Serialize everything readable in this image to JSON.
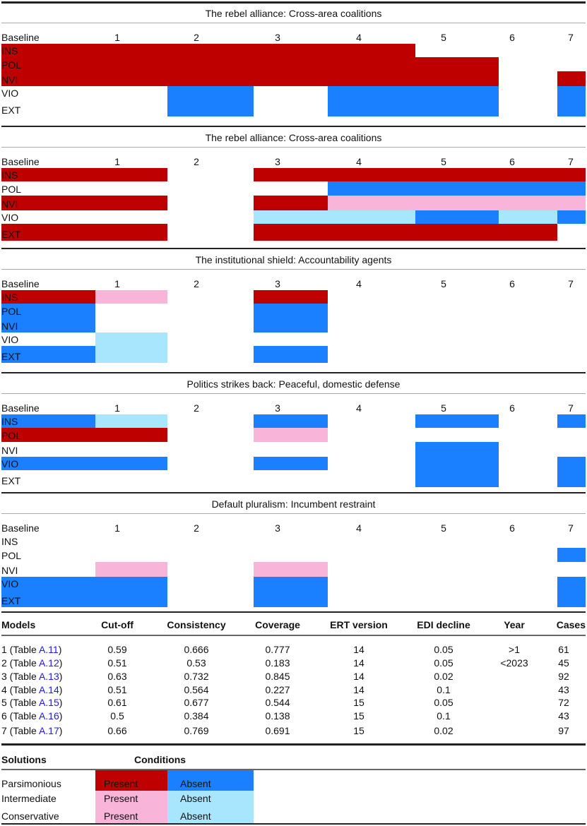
{
  "colors": {
    "present_parsimonious": "#bf0000",
    "absent_parsimonious": "#1a80ff",
    "present_other": "#f9b4d9",
    "absent_other": "#a8e6fe"
  },
  "legend_codes": {
    "P": "present parsimonious",
    "A": "absent parsimonious",
    "p": "present intermediate/conservative",
    "a": "absent intermediate/conservative"
  },
  "column_headers": [
    "Baseline",
    "1",
    "2",
    "3",
    "4",
    "5",
    "6",
    "7"
  ],
  "row_labels": [
    "INS",
    "POL",
    "NVI",
    "VIO",
    "EXT"
  ],
  "panels": [
    {
      "title": "The rebel alliance: Cross-area coalitions",
      "rows": [
        [
          "P",
          "P",
          "P",
          "P",
          "P",
          "",
          "",
          ""
        ],
        [
          "P",
          "P",
          "P",
          "P",
          "P",
          "P",
          "",
          ""
        ],
        [
          "P",
          "P",
          "P",
          "P",
          "P",
          "P",
          "",
          "P"
        ],
        [
          "",
          "",
          "A",
          "",
          "A",
          "A",
          "",
          "A"
        ],
        [
          "",
          "",
          "A",
          "",
          "A",
          "A",
          "",
          "A"
        ]
      ]
    },
    {
      "title": "The rebel alliance: Cross-area coalitions",
      "rows": [
        [
          "P",
          "P",
          "",
          "P",
          "P",
          "P",
          "P",
          "P"
        ],
        [
          "",
          "",
          "",
          "",
          "A",
          "A",
          "A",
          "A"
        ],
        [
          "P",
          "P",
          "",
          "P",
          "p",
          "p",
          "p",
          "p"
        ],
        [
          "",
          "",
          "",
          "a",
          "a",
          "A",
          "a",
          "A"
        ],
        [
          "P",
          "P",
          "",
          "P",
          "P",
          "P",
          "P",
          ""
        ]
      ]
    },
    {
      "title": "The institutional shield: Accountability agents",
      "rows": [
        [
          "P",
          "p",
          "",
          "P",
          "",
          "",
          "",
          ""
        ],
        [
          "A",
          "",
          "",
          "A",
          "",
          "",
          "",
          ""
        ],
        [
          "A",
          "",
          "",
          "A",
          "",
          "",
          "",
          ""
        ],
        [
          "",
          "a",
          "",
          "",
          "",
          "",
          "",
          ""
        ],
        [
          "A",
          "a",
          "",
          "A",
          "",
          "",
          "",
          ""
        ]
      ]
    },
    {
      "title": "Politics strikes back: Peaceful, domestic defense",
      "rows": [
        [
          "A",
          "a",
          "",
          "A",
          "",
          "A",
          "",
          "A"
        ],
        [
          "P",
          "P",
          "",
          "p",
          "",
          "",
          "",
          ""
        ],
        [
          "",
          "",
          "",
          "",
          "",
          "A",
          "",
          ""
        ],
        [
          "A",
          "A",
          "",
          "A",
          "",
          "A",
          "",
          "A"
        ],
        [
          "",
          "",
          "",
          "",
          "",
          "A",
          "",
          "A"
        ]
      ]
    },
    {
      "title": "Default pluralism: Incumbent restraint",
      "rows": [
        [
          "",
          "",
          "",
          "",
          "",
          "",
          "",
          ""
        ],
        [
          "",
          "",
          "",
          "",
          "",
          "",
          "",
          "A"
        ],
        [
          "",
          "p",
          "",
          "p",
          "",
          "",
          "",
          ""
        ],
        [
          "A",
          "A",
          "",
          "A",
          "",
          "",
          "",
          "A"
        ],
        [
          "A",
          "A",
          "",
          "A",
          "",
          "",
          "",
          "A"
        ]
      ]
    }
  ],
  "models": {
    "headers": [
      "Models",
      "Cut-off",
      "Consistency",
      "Coverage",
      "ERT version",
      "EDI decline",
      "Year",
      "Cases"
    ],
    "rows": [
      {
        "prefix": "1 (Table ",
        "ref": "A.11",
        "suffix": ")",
        "vals": [
          "0.59",
          "0.666",
          "0.777",
          "14",
          "0.05",
          ">1",
          "61"
        ]
      },
      {
        "prefix": "2 (Table ",
        "ref": "A.12",
        "suffix": ")",
        "vals": [
          "0.51",
          "0.53",
          "0.183",
          "14",
          "0.05",
          "<2023",
          "45"
        ]
      },
      {
        "prefix": "3 (Table ",
        "ref": "A.13",
        "suffix": ")",
        "vals": [
          "0.63",
          "0.732",
          "0.845",
          "14",
          "0.02",
          "",
          "92"
        ]
      },
      {
        "prefix": "4 (Table ",
        "ref": "A.14",
        "suffix": ")",
        "vals": [
          "0.51",
          "0.564",
          "0.227",
          "14",
          "0.1",
          "",
          "43"
        ]
      },
      {
        "prefix": "5 (Table ",
        "ref": "A.15",
        "suffix": ")",
        "vals": [
          "0.61",
          "0.677",
          "0.544",
          "15",
          "0.05",
          "",
          "72"
        ]
      },
      {
        "prefix": "6 (Table ",
        "ref": "A.16",
        "suffix": ")",
        "vals": [
          "0.5",
          "0.384",
          "0.138",
          "15",
          "0.1",
          "",
          "43"
        ]
      },
      {
        "prefix": "7 (Table ",
        "ref": "A.17",
        "suffix": ")",
        "vals": [
          "0.66",
          "0.769",
          "0.691",
          "15",
          "0.02",
          "",
          "97"
        ]
      }
    ]
  },
  "solutions": {
    "headers": [
      "Solutions",
      "Conditions"
    ],
    "rows": [
      {
        "label": "Parsimonious",
        "present": "Present",
        "absent": "Absent",
        "type": "parsimonious"
      },
      {
        "label": "Intermediate",
        "present": "Present",
        "absent": "Absent",
        "type": "intermediate"
      },
      {
        "label": "Conservative",
        "present": "Present",
        "absent": "Absent",
        "type": "conservative"
      }
    ]
  }
}
